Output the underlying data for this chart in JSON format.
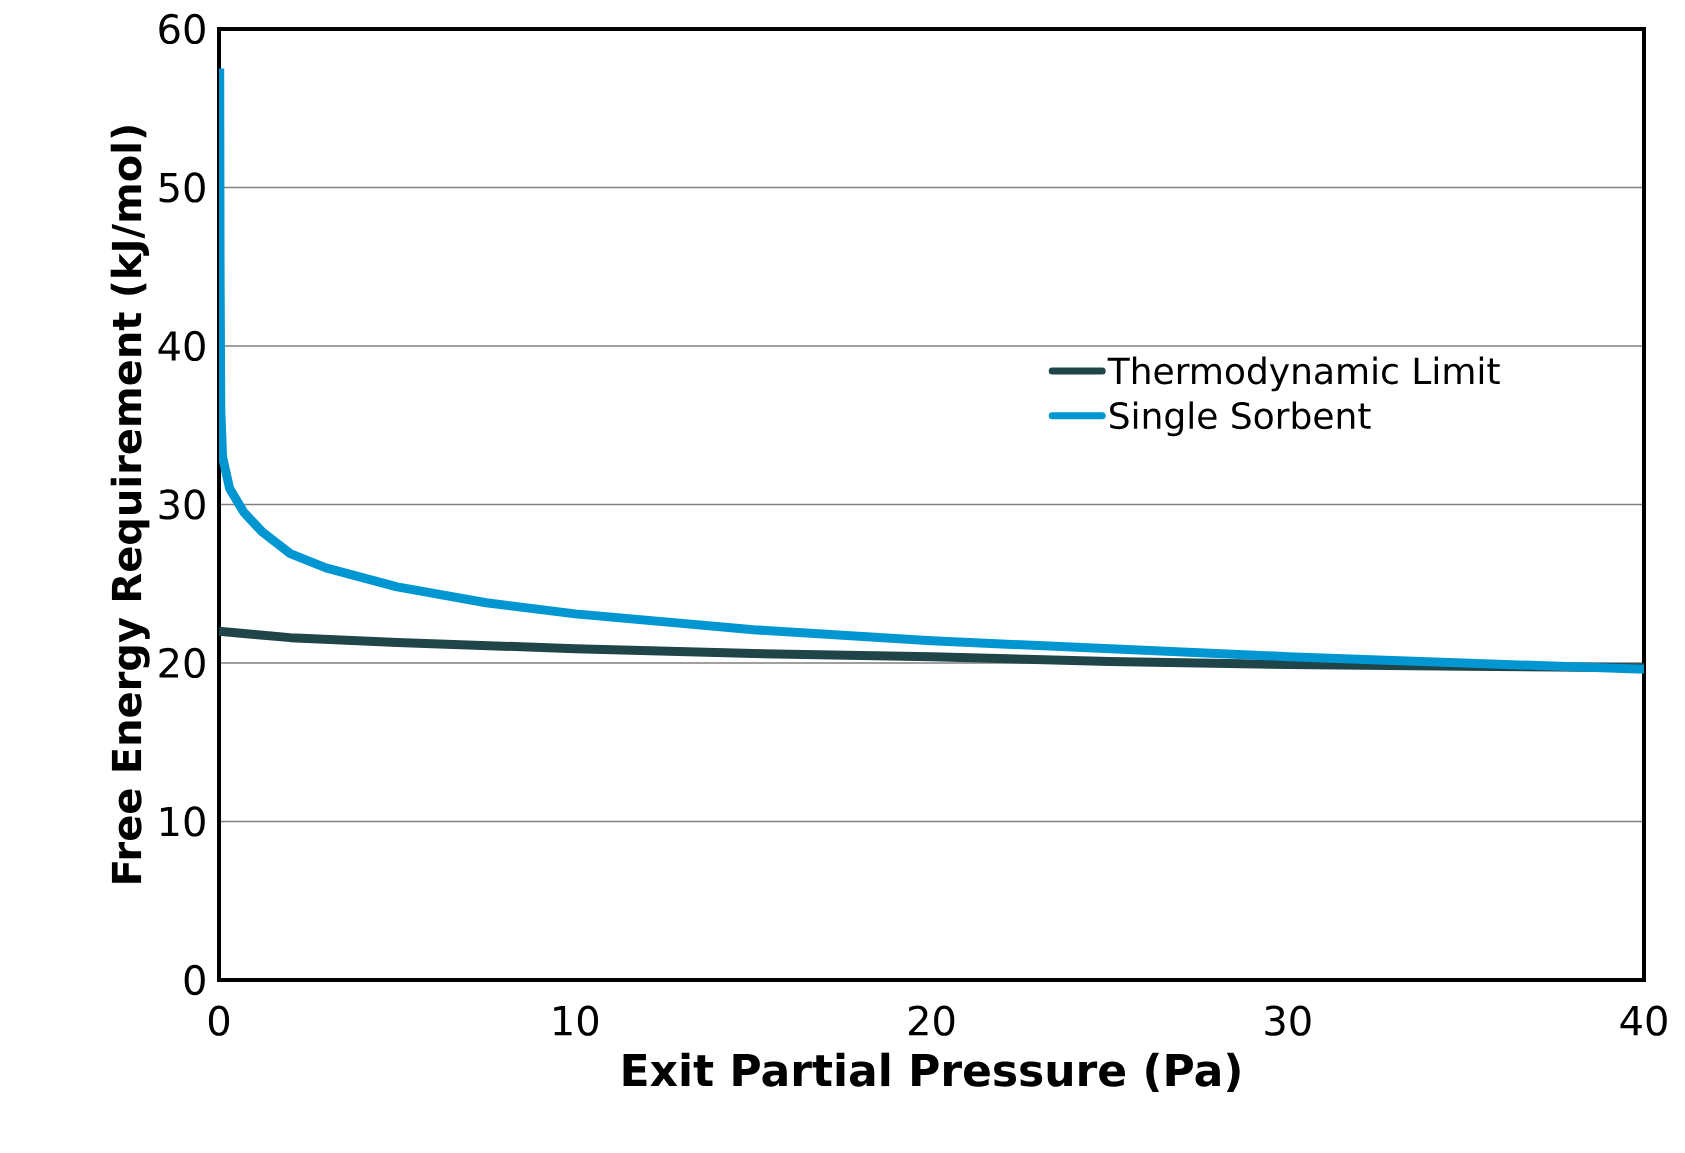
{
  "chart_data": {
    "type": "line",
    "xlabel": "Exit Partial Pressure (Pa)",
    "ylabel": "Free Energy Requirement (kJ/mol)",
    "xlim": [
      0,
      40
    ],
    "ylim": [
      0,
      60
    ],
    "xticks": [
      0,
      10,
      20,
      30,
      40
    ],
    "yticks": [
      0,
      10,
      20,
      30,
      40,
      50,
      60
    ],
    "grid": "y",
    "legend": "right",
    "marker": "none",
    "line_style": "solid",
    "series": [
      {
        "name": "Thermodynamic Limit",
        "color": "#1f4549",
        "x": [
          0,
          1,
          2,
          5,
          10,
          15,
          20,
          25,
          30,
          35,
          40
        ],
        "values": [
          22.0,
          21.8,
          21.6,
          21.3,
          20.9,
          20.6,
          20.4,
          20.1,
          19.9,
          19.8,
          19.7
        ]
      },
      {
        "name": "Single Sorbent",
        "color": "#0096d2",
        "x": [
          0.02,
          0.03,
          0.05,
          0.1,
          0.3,
          0.7,
          1.2,
          2,
          3,
          5,
          7.5,
          10,
          15,
          20,
          25,
          30,
          35,
          40
        ],
        "values": [
          57.5,
          45,
          36,
          33,
          31,
          29.5,
          28.3,
          26.9,
          26.0,
          24.8,
          23.8,
          23.1,
          22.1,
          21.4,
          20.9,
          20.4,
          20.0,
          19.6
        ]
      }
    ]
  }
}
